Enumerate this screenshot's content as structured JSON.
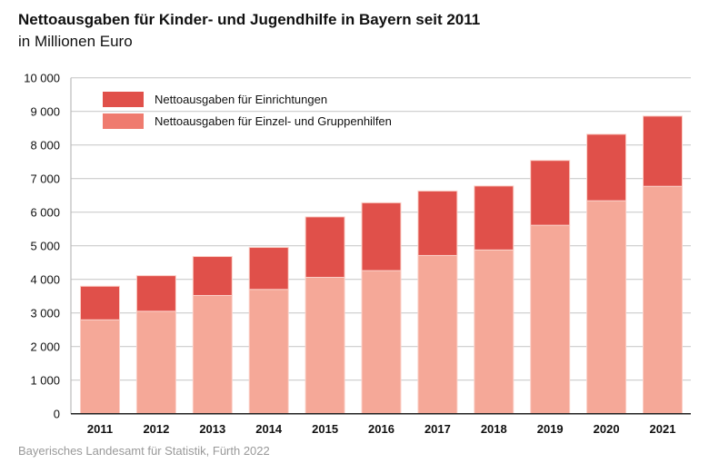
{
  "chart_data": {
    "type": "bar",
    "stacked": true,
    "title": "Nettoausgaben für Kinder- und Jugendhilfe in Bayern seit 2011",
    "subtitle": "in Millionen Euro",
    "source": "Bayerisches Landesamt für Statistik, Fürth 2022",
    "categories": [
      "2011",
      "2012",
      "2013",
      "2014",
      "2015",
      "2016",
      "2017",
      "2018",
      "2019",
      "2020",
      "2021"
    ],
    "series": [
      {
        "name": "Nettoausgaben für Einzel- und Gruppenhilfen",
        "color": "#f5a898",
        "legend_color": "#ef7b6f",
        "values": [
          2795,
          3050,
          3520,
          3700,
          4060,
          4260,
          4710,
          4875,
          5610,
          6340,
          6770
        ]
      },
      {
        "name": "Nettoausgaben für Einrichtungen",
        "color": "#e0504a",
        "values": [
          1000,
          1060,
          1160,
          1250,
          1800,
          2020,
          1920,
          1905,
          1930,
          1980,
          2090
        ]
      }
    ],
    "ylim": [
      0,
      10000
    ],
    "yticks": [
      "0",
      "1 000",
      "2 000",
      "3 000",
      "4 000",
      "5 000",
      "6 000",
      "7 000",
      "8 000",
      "9 000",
      "10 000"
    ],
    "grid": true,
    "legend": "top-left"
  }
}
